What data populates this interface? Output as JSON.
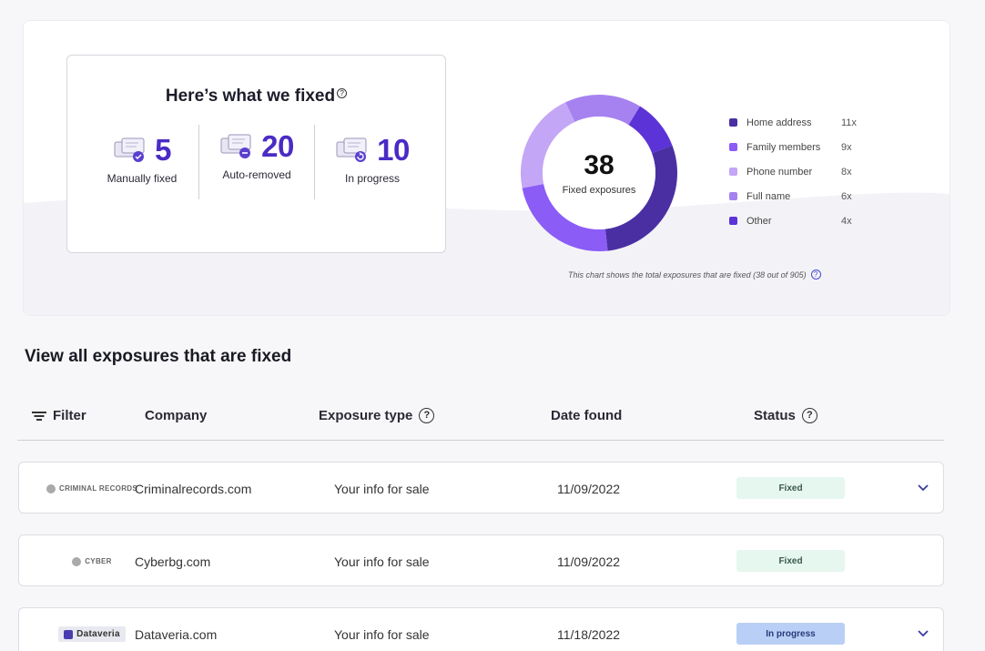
{
  "summary": {
    "title": "Here’s what we fixed",
    "help_glyph": "?",
    "stats": [
      {
        "value": "5",
        "label": "Manually fixed",
        "icon": "manual-fix-icon"
      },
      {
        "value": "20",
        "label": "Auto-removed",
        "icon": "auto-remove-icon"
      },
      {
        "value": "10",
        "label": "In progress",
        "icon": "in-progress-icon"
      }
    ]
  },
  "chart_data": {
    "type": "pie",
    "total": "38",
    "center_label": "Fixed exposures",
    "categories": [
      "Home address",
      "Family members",
      "Phone number",
      "Full name",
      "Other"
    ],
    "values": [
      11,
      9,
      8,
      6,
      4
    ],
    "value_labels": [
      "11x",
      "9x",
      "8x",
      "6x",
      "4x"
    ],
    "colors": [
      "#4a2fa3",
      "#8b5cf6",
      "#c4a6f7",
      "#a682f0",
      "#5b33d6"
    ],
    "note": "This chart shows the total exposures that are fixed (38 out of 905)"
  },
  "list": {
    "title": "View all exposures that are fixed",
    "columns": {
      "filter": "Filter",
      "company": "Company",
      "exposure_type": "Exposure type",
      "date_found": "Date found",
      "status": "Status"
    },
    "rows": [
      {
        "logo": "CRIMINAL RECORDS",
        "company": "Criminalrecords.com",
        "exposure": "Your info for sale",
        "date": "11/09/2022",
        "status": "Fixed"
      },
      {
        "logo": "CYBER",
        "company": "Cyberbg.com",
        "exposure": "Your info for sale",
        "date": "11/09/2022",
        "status": "Fixed"
      },
      {
        "logo": "Dataveria",
        "company": "Dataveria.com",
        "exposure": "Your info for sale",
        "date": "11/18/2022",
        "status": "In progress"
      }
    ]
  },
  "colors": {
    "accent": "#4a2bc4",
    "fixed_badge_bg": "#e6f7ef",
    "progress_badge_bg": "#b9cff5"
  }
}
